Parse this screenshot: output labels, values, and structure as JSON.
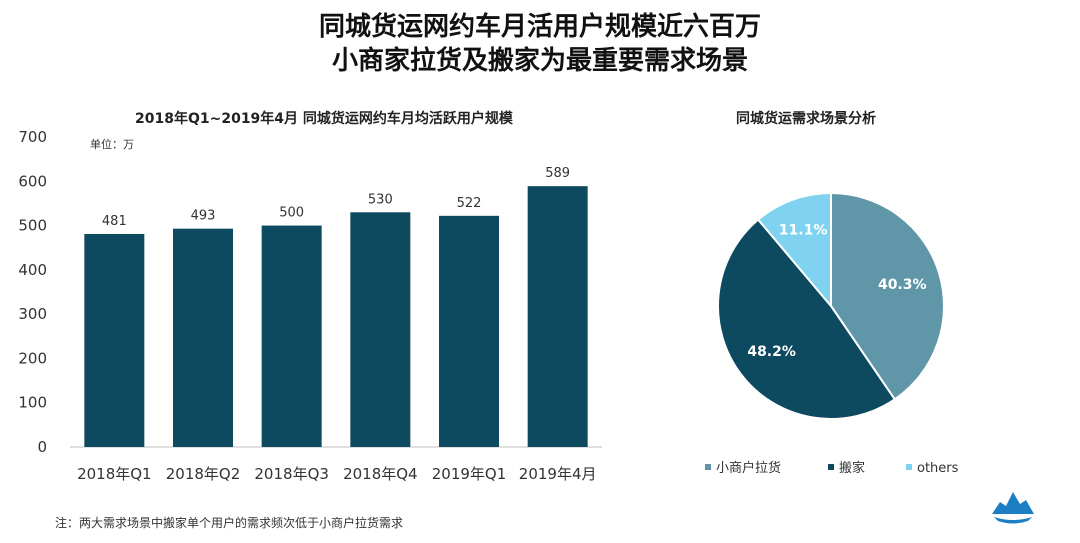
{
  "page": {
    "title_line1": "同城货运网约车月活用户规模近六百万",
    "title_line2": "小商家拉货及搬家为最重要需求场景",
    "note": "注：两大需求场景中搬家单个用户的需求频次低于小商户拉货需求"
  },
  "colors": {
    "bar": "#0d4a60",
    "pie_small_merchant": "#5f96a8",
    "pie_moving": "#0d4a60",
    "pie_others": "#7fd3f0"
  },
  "chart_data": [
    {
      "type": "bar",
      "title": "2018年Q1~2019年4月 同城货运网约车月均活跃用户规模",
      "unit_label": "单位：万",
      "categories": [
        "2018年Q1",
        "2018年Q2",
        "2018年Q3",
        "2018年Q4",
        "2019年Q1",
        "2019年4月"
      ],
      "values": [
        481,
        493,
        500,
        530,
        522,
        589
      ],
      "data_labels": [
        "481",
        "493",
        "500",
        "530",
        "522",
        "589"
      ],
      "ylim": [
        0,
        700
      ],
      "yticks": [
        "0",
        "100",
        "200",
        "300",
        "400",
        "500",
        "600",
        "700"
      ],
      "grid": false
    },
    {
      "type": "pie",
      "title": "同城货运需求场景分析",
      "slices": [
        {
          "name": "小商户拉货",
          "value": 40.3,
          "label": "40.3%"
        },
        {
          "name": "搬家",
          "value": 48.2,
          "label": "48.2%"
        },
        {
          "name": "others",
          "value": 11.1,
          "label": "11.1%"
        }
      ],
      "legend_position": "bottom"
    }
  ]
}
